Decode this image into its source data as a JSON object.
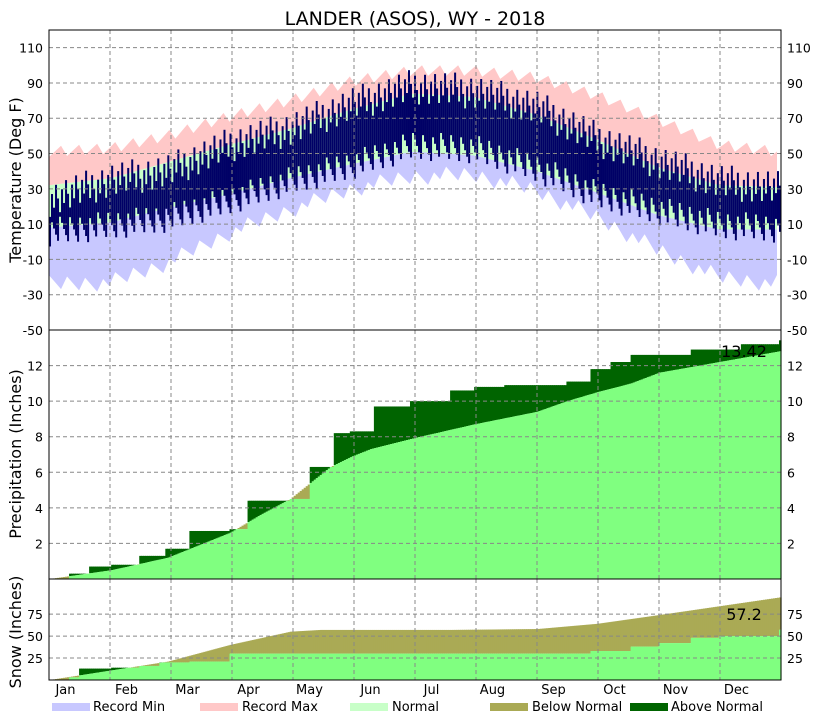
{
  "chart_data": {
    "title": "LANDER (ASOS), WY - 2018",
    "months": [
      "Jan",
      "Feb",
      "Mar",
      "Apr",
      "May",
      "Jun",
      "Jul",
      "Aug",
      "Sep",
      "Oct",
      "Nov",
      "Dec"
    ],
    "legend": [
      {
        "label": "Record Min",
        "color": "#c8c8ff"
      },
      {
        "label": "Record Max",
        "color": "#ffc8c8"
      },
      {
        "label": "Normal",
        "color": "#c8ffc8"
      },
      {
        "label": "Below Normal",
        "color": "#aaaa55"
      },
      {
        "label": "Above Normal",
        "color": "#006400"
      }
    ],
    "colors": {
      "record_min": "#c8c8ff",
      "record_max": "#ffc8c8",
      "normal_band": "#c8ffc8",
      "observed_temp": "#000066",
      "normal_precip": "#80ff80",
      "above_normal": "#006400",
      "below_normal": "#aaaa55"
    },
    "panels": [
      {
        "type": "area",
        "ylabel": "Temperature (Deg F)",
        "ylim": [
          -50,
          120
        ],
        "ticks": [
          -50,
          -30,
          -10,
          10,
          30,
          50,
          70,
          90,
          110
        ],
        "grid": true,
        "record_max_normal": [
          [
            0,
            52
          ],
          [
            31,
            54
          ],
          [
            59,
            61
          ],
          [
            90,
            72
          ],
          [
            120,
            81
          ],
          [
            151,
            92
          ],
          [
            181,
            98
          ],
          [
            212,
            98
          ],
          [
            243,
            94
          ],
          [
            273,
            84
          ],
          [
            304,
            70
          ],
          [
            334,
            56
          ],
          [
            364,
            52
          ]
        ],
        "record_min_normal": [
          [
            0,
            -24
          ],
          [
            31,
            -23
          ],
          [
            59,
            -12
          ],
          [
            90,
            5
          ],
          [
            120,
            18
          ],
          [
            151,
            30
          ],
          [
            181,
            37
          ],
          [
            212,
            38
          ],
          [
            243,
            29
          ],
          [
            273,
            14
          ],
          [
            304,
            -5
          ],
          [
            334,
            -20
          ],
          [
            364,
            -24
          ]
        ],
        "normal_high": [
          [
            0,
            32
          ],
          [
            31,
            36
          ],
          [
            59,
            45
          ],
          [
            90,
            55
          ],
          [
            120,
            64
          ],
          [
            151,
            75
          ],
          [
            181,
            84
          ],
          [
            212,
            82
          ],
          [
            243,
            72
          ],
          [
            273,
            58
          ],
          [
            304,
            42
          ],
          [
            334,
            32
          ],
          [
            364,
            31
          ]
        ],
        "normal_low": [
          [
            0,
            8
          ],
          [
            31,
            11
          ],
          [
            59,
            19
          ],
          [
            90,
            27
          ],
          [
            120,
            36
          ],
          [
            151,
            44
          ],
          [
            181,
            51
          ],
          [
            212,
            49
          ],
          [
            243,
            40
          ],
          [
            273,
            28
          ],
          [
            304,
            15
          ],
          [
            334,
            7
          ],
          [
            364,
            7
          ]
        ],
        "observed_high": [
          [
            0,
            24
          ],
          [
            31,
            35
          ],
          [
            59,
            40
          ],
          [
            90,
            55
          ],
          [
            120,
            64
          ],
          [
            151,
            78
          ],
          [
            181,
            88
          ],
          [
            212,
            85
          ],
          [
            243,
            76
          ],
          [
            273,
            58
          ],
          [
            304,
            45
          ],
          [
            334,
            34
          ],
          [
            364,
            30
          ]
        ],
        "observed_low": [
          [
            0,
            6
          ],
          [
            31,
            10
          ],
          [
            59,
            14
          ],
          [
            90,
            24
          ],
          [
            120,
            35
          ],
          [
            151,
            44
          ],
          [
            181,
            55
          ],
          [
            212,
            53
          ],
          [
            243,
            42
          ],
          [
            273,
            27
          ],
          [
            304,
            18
          ],
          [
            334,
            10
          ],
          [
            364,
            8
          ]
        ]
      },
      {
        "type": "area",
        "ylabel": "Precipitation (Inches)",
        "ylim": [
          0,
          14
        ],
        "ticks": [
          2,
          4,
          6,
          8,
          10,
          12
        ],
        "grid": true,
        "annotation": "13.42",
        "observed": [
          [
            0,
            0
          ],
          [
            10,
            0.3
          ],
          [
            20,
            0.7
          ],
          [
            31,
            0.8
          ],
          [
            45,
            1.3
          ],
          [
            58,
            1.7
          ],
          [
            70,
            2.7
          ],
          [
            90,
            2.8
          ],
          [
            99,
            4.4
          ],
          [
            120,
            4.5
          ],
          [
            130,
            6.3
          ],
          [
            142,
            8.2
          ],
          [
            150,
            8.3
          ],
          [
            162,
            9.7
          ],
          [
            180,
            10.0
          ],
          [
            200,
            10.6
          ],
          [
            212,
            10.8
          ],
          [
            227,
            10.9
          ],
          [
            246,
            10.9
          ],
          [
            258,
            11.1
          ],
          [
            270,
            11.8
          ],
          [
            280,
            12.2
          ],
          [
            290,
            12.6
          ],
          [
            320,
            12.9
          ],
          [
            345,
            13.2
          ],
          [
            364,
            13.42
          ]
        ],
        "normal": [
          [
            0,
            0
          ],
          [
            31,
            0.5
          ],
          [
            59,
            1.2
          ],
          [
            90,
            2.6
          ],
          [
            105,
            3.6
          ],
          [
            120,
            4.5
          ],
          [
            140,
            6.3
          ],
          [
            151,
            6.9
          ],
          [
            160,
            7.3
          ],
          [
            181,
            7.9
          ],
          [
            212,
            8.7
          ],
          [
            243,
            9.4
          ],
          [
            258,
            10.0
          ],
          [
            273,
            10.5
          ],
          [
            290,
            11.0
          ],
          [
            304,
            11.6
          ],
          [
            334,
            12.2
          ],
          [
            364,
            12.8
          ]
        ]
      },
      {
        "type": "area",
        "ylabel": "Snow (Inches)",
        "ylim": [
          0,
          115
        ],
        "ticks": [
          25,
          50,
          75
        ],
        "grid": true,
        "annotation": "57.2",
        "observed": [
          [
            0,
            0
          ],
          [
            10,
            3
          ],
          [
            15,
            13
          ],
          [
            31,
            14
          ],
          [
            45,
            16
          ],
          [
            55,
            20
          ],
          [
            59,
            20
          ],
          [
            70,
            21
          ],
          [
            90,
            30
          ],
          [
            120,
            30
          ],
          [
            151,
            30
          ],
          [
            200,
            30
          ],
          [
            243,
            30
          ],
          [
            270,
            33
          ],
          [
            290,
            38
          ],
          [
            304,
            42
          ],
          [
            320,
            48
          ],
          [
            334,
            50
          ],
          [
            364,
            57.2
          ]
        ],
        "normal": [
          [
            0,
            0
          ],
          [
            31,
            11
          ],
          [
            59,
            21
          ],
          [
            90,
            40
          ],
          [
            120,
            55
          ],
          [
            135,
            57
          ],
          [
            150,
            57
          ],
          [
            200,
            57
          ],
          [
            243,
            58
          ],
          [
            273,
            64
          ],
          [
            304,
            74
          ],
          [
            334,
            84
          ],
          [
            364,
            94
          ]
        ]
      }
    ]
  }
}
